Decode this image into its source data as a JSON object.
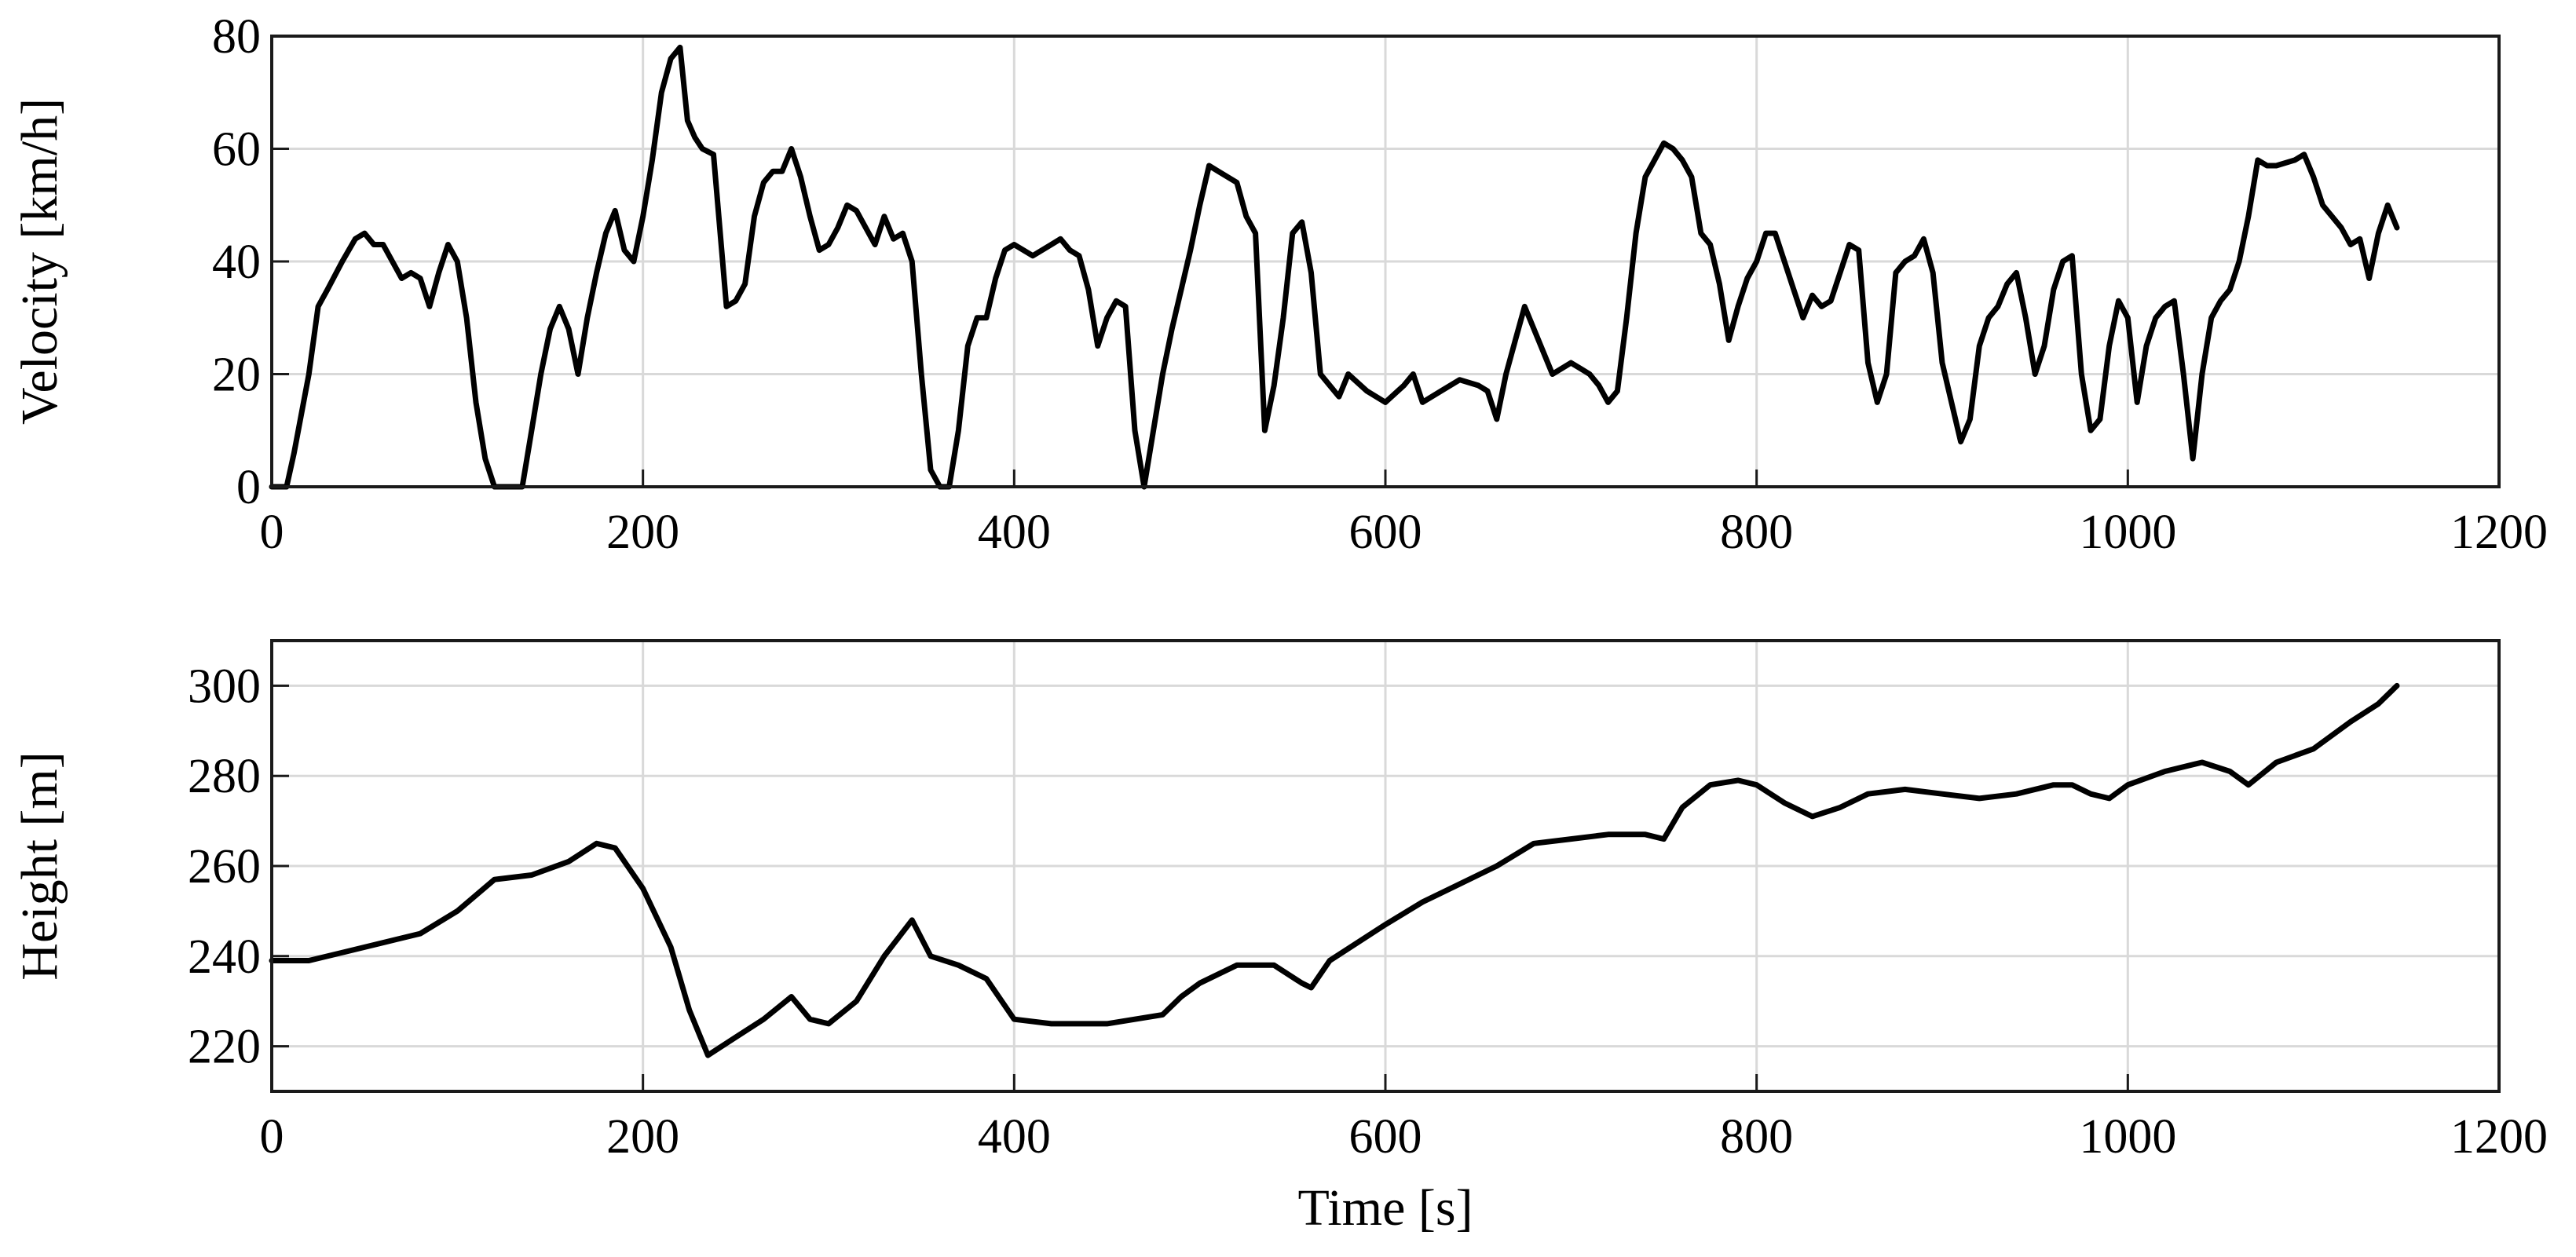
{
  "chart_data": [
    {
      "type": "line",
      "title": "",
      "xlabel": "",
      "ylabel": "Velocity [km/h]",
      "xlim": [
        0,
        1200
      ],
      "ylim": [
        0,
        80
      ],
      "xticks": [
        "0",
        "200",
        "400",
        "600",
        "800",
        "1000",
        "1200"
      ],
      "yticks": [
        "0",
        "20",
        "40",
        "60",
        "80"
      ],
      "grid": true,
      "line_color": "#000000",
      "series": [
        {
          "x": [
            0,
            8,
            12,
            20,
            25,
            30,
            38,
            45,
            50,
            55,
            60,
            70,
            75,
            80,
            85,
            90,
            95,
            100,
            105,
            110,
            115,
            120,
            125,
            130,
            135,
            140,
            145,
            150,
            155,
            160,
            165,
            170,
            175,
            180,
            185,
            190,
            195,
            200,
            205,
            210,
            215,
            220,
            224,
            228,
            232,
            238,
            245,
            250,
            255,
            260,
            265,
            270,
            275,
            280,
            285,
            290,
            295,
            300,
            305,
            310,
            315,
            320,
            325,
            330,
            335,
            340,
            345,
            350,
            355,
            360,
            365,
            370,
            375,
            380,
            385,
            390,
            395,
            400,
            410,
            420,
            425,
            430,
            435,
            440,
            445,
            450,
            455,
            460,
            465,
            470,
            475,
            480,
            485,
            490,
            495,
            500,
            505,
            510,
            515,
            520,
            525,
            530,
            535,
            540,
            545,
            550,
            555,
            560,
            565,
            570,
            575,
            580,
            590,
            600,
            610,
            615,
            620,
            630,
            640,
            650,
            655,
            660,
            665,
            670,
            675,
            680,
            690,
            700,
            705,
            710,
            715,
            720,
            725,
            730,
            735,
            740,
            745,
            750,
            755,
            760,
            765,
            770,
            775,
            780,
            785,
            790,
            795,
            800,
            805,
            810,
            815,
            820,
            825,
            830,
            835,
            840,
            845,
            850,
            855,
            860,
            865,
            870,
            875,
            880,
            885,
            890,
            895,
            900,
            905,
            910,
            915,
            920,
            925,
            930,
            935,
            940,
            945,
            950,
            955,
            960,
            965,
            970,
            975,
            980,
            985,
            990,
            995,
            1000,
            1005,
            1010,
            1015,
            1020,
            1025,
            1030,
            1035,
            1040,
            1045,
            1050,
            1055,
            1060,
            1065,
            1070,
            1075,
            1080,
            1090,
            1095,
            1100,
            1105,
            1110,
            1115,
            1120,
            1125,
            1130,
            1135,
            1140,
            1145
          ],
          "y": [
            0,
            0,
            6,
            20,
            32,
            35,
            40,
            44,
            45,
            43,
            43,
            37,
            38,
            37,
            32,
            38,
            43,
            40,
            30,
            15,
            5,
            0,
            0,
            0,
            0,
            10,
            20,
            28,
            32,
            28,
            20,
            30,
            38,
            45,
            49,
            42,
            40,
            48,
            58,
            70,
            76,
            78,
            65,
            62,
            60,
            59,
            32,
            33,
            36,
            48,
            54,
            56,
            56,
            60,
            55,
            48,
            42,
            43,
            46,
            50,
            49,
            46,
            43,
            48,
            44,
            45,
            40,
            20,
            3,
            0,
            0,
            10,
            25,
            30,
            30,
            37,
            42,
            43,
            41,
            43,
            44,
            42,
            41,
            35,
            25,
            30,
            33,
            32,
            10,
            0,
            10,
            20,
            28,
            35,
            42,
            50,
            57,
            56,
            55,
            54,
            48,
            45,
            10,
            18,
            30,
            45,
            47,
            38,
            20,
            18,
            16,
            20,
            17,
            15,
            18,
            20,
            15,
            17,
            19,
            18,
            17,
            12,
            20,
            26,
            32,
            28,
            20,
            22,
            21,
            20,
            18,
            15,
            17,
            30,
            45,
            55,
            58,
            61,
            60,
            58,
            55,
            45,
            43,
            36,
            26,
            32,
            37,
            40,
            45,
            45,
            40,
            35,
            30,
            34,
            32,
            33,
            38,
            43,
            42,
            22,
            15,
            20,
            38,
            40,
            41,
            44,
            38,
            22,
            15,
            8,
            12,
            25,
            30,
            32,
            36,
            38,
            30,
            20,
            25,
            35,
            40,
            41,
            20,
            10,
            12,
            25,
            33,
            30,
            15,
            25,
            30,
            32,
            33,
            20,
            5,
            20,
            30,
            33,
            35,
            40,
            48,
            58,
            57,
            57,
            58,
            59,
            55,
            50,
            48,
            46,
            43,
            44,
            37,
            45,
            50,
            46
          ]
        }
      ]
    },
    {
      "type": "line",
      "title": "",
      "xlabel": "Time [s]",
      "ylabel": "Height [m]",
      "xlim": [
        0,
        1200
      ],
      "ylim": [
        210,
        310
      ],
      "xticks": [
        "0",
        "200",
        "400",
        "600",
        "800",
        "1000",
        "1200"
      ],
      "yticks": [
        "220",
        "240",
        "260",
        "280",
        "300"
      ],
      "grid": true,
      "line_color": "#000000",
      "series": [
        {
          "x": [
            0,
            20,
            40,
            60,
            80,
            100,
            120,
            140,
            160,
            175,
            185,
            200,
            215,
            225,
            235,
            250,
            265,
            280,
            290,
            300,
            315,
            330,
            345,
            355,
            370,
            385,
            400,
            420,
            450,
            480,
            490,
            500,
            520,
            540,
            555,
            560,
            570,
            600,
            620,
            640,
            660,
            680,
            700,
            720,
            740,
            750,
            760,
            775,
            790,
            800,
            815,
            830,
            845,
            860,
            880,
            900,
            920,
            940,
            960,
            970,
            980,
            990,
            1000,
            1020,
            1040,
            1055,
            1065,
            1080,
            1100,
            1120,
            1135,
            1145
          ],
          "y": [
            239,
            239,
            241,
            243,
            245,
            250,
            257,
            258,
            261,
            265,
            264,
            255,
            242,
            228,
            218,
            222,
            226,
            231,
            226,
            225,
            230,
            240,
            248,
            240,
            238,
            235,
            226,
            225,
            225,
            227,
            231,
            234,
            238,
            238,
            234,
            233,
            239,
            247,
            252,
            256,
            260,
            265,
            266,
            267,
            267,
            266,
            273,
            278,
            279,
            278,
            274,
            271,
            273,
            276,
            277,
            276,
            275,
            276,
            278,
            278,
            276,
            275,
            278,
            281,
            283,
            281,
            278,
            283,
            286,
            292,
            296,
            300
          ]
        }
      ]
    }
  ]
}
